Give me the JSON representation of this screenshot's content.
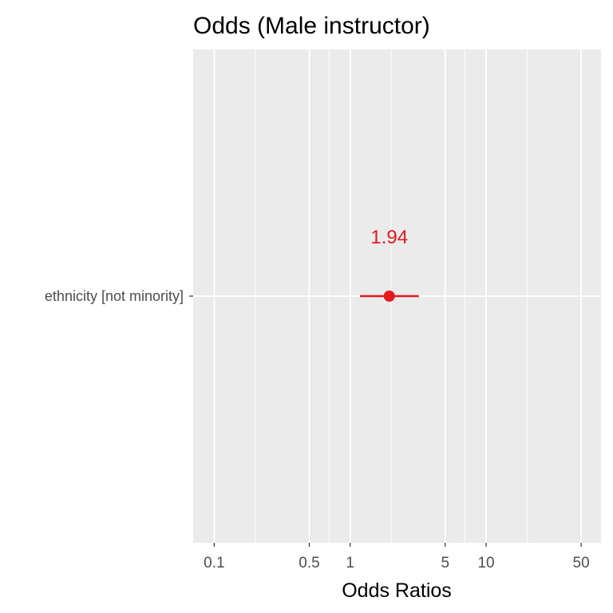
{
  "chart_data": {
    "type": "scatter",
    "title": "Odds (Male instructor)",
    "xlabel": "Odds Ratios",
    "ylabel": "",
    "x_scale": "log10",
    "xlim": [
      0.07,
      70
    ],
    "x_ticks": [
      0.1,
      0.5,
      1,
      5,
      10,
      50
    ],
    "x_tick_labels": [
      "0.1",
      "0.5",
      "1",
      "5",
      "10",
      "50"
    ],
    "x_minor_gridlines": [
      0.2,
      0.7,
      2,
      7,
      20
    ],
    "grid": true,
    "legend": "none",
    "series": [
      {
        "color": "#e41a1c",
        "points": [
          {
            "term": "ethnicity [not minority]",
            "estimate": 1.94,
            "ci_low": 1.18,
            "ci_high": 3.2,
            "label": "1.94"
          }
        ]
      }
    ]
  }
}
